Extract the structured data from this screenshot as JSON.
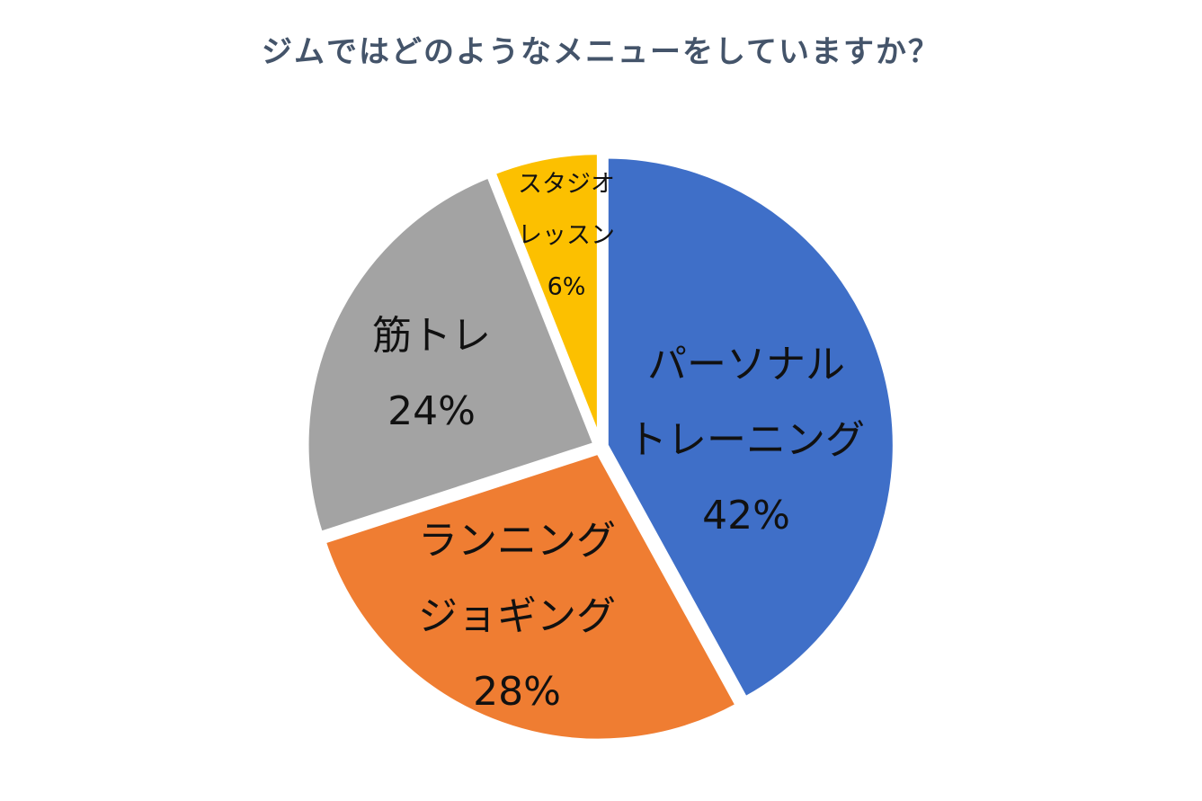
{
  "chart_data": {
    "type": "pie",
    "title": "ジムではどのようなメニューをしていますか？",
    "categories": [
      "パーソナル\nトレーニング",
      "ランニング\nジョギング",
      "筋トレ",
      "スタジオ\nレッスン"
    ],
    "values": [
      42,
      28,
      24,
      6
    ],
    "value_labels": [
      "42%",
      "28%",
      "24%",
      "6%"
    ],
    "colors": [
      "#3f6fc8",
      "#ef7d32",
      "#a3a3a3",
      "#fcc000"
    ]
  }
}
